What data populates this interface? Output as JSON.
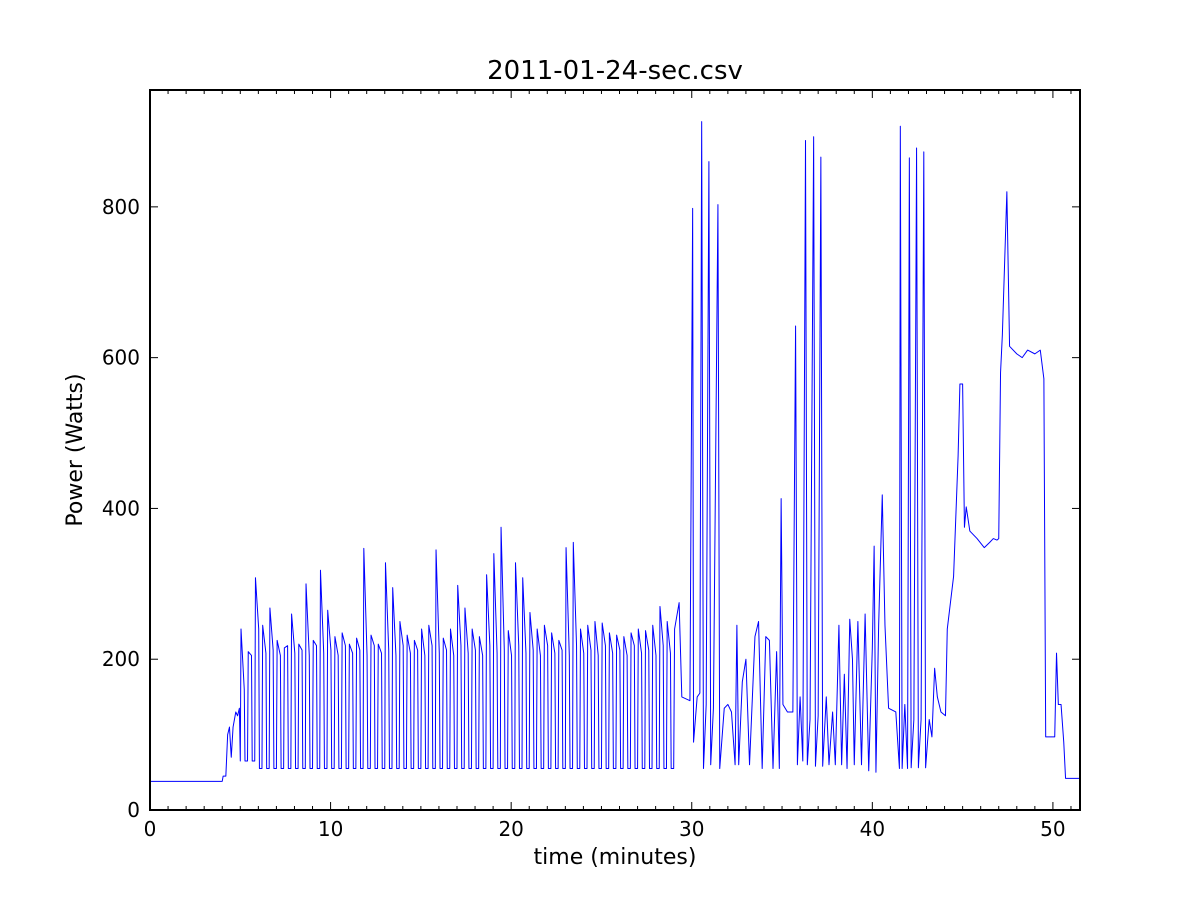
{
  "chart_data": {
    "type": "line",
    "title": "2011-01-24-sec.csv",
    "xlabel": "time (minutes)",
    "ylabel": "Power (Watts)",
    "color": "#0000ff",
    "xlim": [
      0,
      51.5
    ],
    "ylim": [
      0,
      955
    ],
    "xticks": [
      0,
      10,
      20,
      30,
      40,
      50
    ],
    "yticks": [
      0,
      200,
      400,
      600,
      800
    ],
    "xminorticks": [
      1,
      2,
      3,
      4,
      5,
      6,
      7,
      8,
      9,
      11,
      12,
      13,
      14,
      15,
      16,
      17,
      18,
      19,
      21,
      22,
      23,
      24,
      25,
      26,
      27,
      28,
      29,
      31,
      32,
      33,
      34,
      35,
      36,
      37,
      38,
      39,
      41,
      42,
      43,
      44,
      45,
      46,
      47,
      48,
      49,
      51
    ],
    "x": [
      0,
      4,
      4.05,
      4.2,
      4.3,
      4.4,
      4.5,
      4.6,
      4.75,
      4.85,
      4.95,
      5,
      5.04,
      5.22,
      5.26,
      5.4,
      5.44,
      5.62,
      5.66,
      5.8,
      5.84,
      6.02,
      6.06,
      6.2,
      6.24,
      6.42,
      6.46,
      6.6,
      6.64,
      6.82,
      6.86,
      7,
      7.04,
      7.22,
      7.26,
      7.4,
      7.44,
      7.62,
      7.66,
      7.8,
      7.84,
      8.02,
      8.06,
      8.2,
      8.24,
      8.42,
      8.46,
      8.6,
      8.64,
      8.82,
      8.86,
      9,
      9.04,
      9.22,
      9.26,
      9.4,
      9.44,
      9.62,
      9.66,
      9.8,
      9.84,
      10.02,
      10.06,
      10.2,
      10.24,
      10.42,
      10.46,
      10.6,
      10.64,
      10.82,
      10.86,
      11,
      11.04,
      11.22,
      11.26,
      11.4,
      11.44,
      11.62,
      11.66,
      11.8,
      11.84,
      12.02,
      12.06,
      12.2,
      12.24,
      12.42,
      12.46,
      12.6,
      12.64,
      12.82,
      12.86,
      13,
      13.04,
      13.22,
      13.26,
      13.4,
      13.44,
      13.62,
      13.66,
      13.8,
      13.84,
      14.02,
      14.06,
      14.2,
      14.24,
      14.42,
      14.46,
      14.6,
      14.64,
      14.82,
      14.86,
      15,
      15.04,
      15.22,
      15.26,
      15.4,
      15.44,
      15.62,
      15.66,
      15.8,
      15.84,
      16.02,
      16.06,
      16.2,
      16.24,
      16.42,
      16.46,
      16.6,
      16.64,
      16.82,
      16.86,
      17,
      17.04,
      17.22,
      17.26,
      17.4,
      17.44,
      17.62,
      17.66,
      17.8,
      17.84,
      18.02,
      18.06,
      18.2,
      18.24,
      18.42,
      18.46,
      18.6,
      18.64,
      18.82,
      18.86,
      19,
      19.04,
      19.22,
      19.26,
      19.4,
      19.44,
      19.62,
      19.66,
      19.8,
      19.84,
      20.02,
      20.06,
      20.2,
      20.24,
      20.42,
      20.46,
      20.6,
      20.64,
      20.82,
      20.86,
      21,
      21.04,
      21.22,
      21.26,
      21.4,
      21.44,
      21.62,
      21.66,
      21.8,
      21.84,
      22.02,
      22.06,
      22.2,
      22.24,
      22.42,
      22.46,
      22.6,
      22.64,
      22.82,
      22.86,
      23,
      23.04,
      23.22,
      23.26,
      23.4,
      23.44,
      23.62,
      23.66,
      23.8,
      23.84,
      24.02,
      24.06,
      24.2,
      24.24,
      24.42,
      24.46,
      24.6,
      24.64,
      24.82,
      24.86,
      25,
      25.04,
      25.22,
      25.26,
      25.4,
      25.44,
      25.62,
      25.66,
      25.8,
      25.84,
      26.02,
      26.06,
      26.2,
      26.24,
      26.42,
      26.46,
      26.6,
      26.64,
      26.82,
      26.86,
      27,
      27.04,
      27.22,
      27.26,
      27.4,
      27.44,
      27.62,
      27.66,
      27.8,
      27.84,
      28.02,
      28.06,
      28.2,
      28.24,
      28.42,
      28.46,
      28.6,
      28.64,
      28.82,
      28.86,
      29,
      29.05,
      29.3,
      29.45,
      29.9,
      30.05,
      30.1,
      30.3,
      30.45,
      30.55,
      30.65,
      30.8,
      30.95,
      31.05,
      31.2,
      31.45,
      31.55,
      31.8,
      32,
      32.2,
      32.4,
      32.5,
      32.6,
      32.8,
      33,
      33.2,
      33.5,
      33.7,
      33.9,
      34.1,
      34.3,
      34.5,
      34.7,
      34.85,
      34.95,
      35.05,
      35.3,
      35.6,
      35.75,
      35.85,
      36,
      36.15,
      36.3,
      36.4,
      36.55,
      36.75,
      36.85,
      37,
      37.15,
      37.25,
      37.45,
      37.6,
      37.8,
      37.95,
      38.15,
      38.3,
      38.45,
      38.6,
      38.75,
      38.9,
      39,
      39.2,
      39.4,
      39.6,
      39.8,
      40,
      40.1,
      40.2,
      40.35,
      40.55,
      40.7,
      40.9,
      41.3,
      41.5,
      41.55,
      41.65,
      41.8,
      41.95,
      42.05,
      42.15,
      42.3,
      42.45,
      42.55,
      42.7,
      42.85,
      42.95,
      43.15,
      43.3,
      43.45,
      43.6,
      43.8,
      44.05,
      44.15,
      44.5,
      44.75,
      44.85,
      45,
      45.1,
      45.2,
      45.4,
      45.8,
      46.2,
      46.5,
      46.7,
      46.9,
      47,
      47.1,
      47.2,
      47.45,
      47.6,
      48,
      48.3,
      48.6,
      49,
      49.3,
      49.5,
      49.6,
      50.1,
      50.2,
      50.3,
      50.45,
      50.6,
      50.7,
      51.5
    ],
    "values": [
      38,
      38,
      45,
      45,
      100,
      110,
      70,
      110,
      130,
      125,
      135,
      65,
      240,
      160,
      65,
      65,
      210,
      205,
      65,
      65,
      308,
      240,
      55,
      55,
      245,
      208,
      55,
      55,
      268,
      212,
      55,
      55,
      225,
      205,
      55,
      55,
      215,
      218,
      55,
      55,
      260,
      208,
      55,
      55,
      220,
      212,
      55,
      55,
      300,
      205,
      55,
      55,
      225,
      218,
      55,
      55,
      318,
      208,
      55,
      55,
      265,
      212,
      55,
      55,
      230,
      205,
      55,
      55,
      235,
      218,
      55,
      55,
      220,
      208,
      55,
      55,
      228,
      212,
      55,
      55,
      347,
      205,
      55,
      55,
      232,
      218,
      55,
      55,
      220,
      208,
      55,
      55,
      328,
      212,
      55,
      55,
      295,
      205,
      55,
      55,
      250,
      218,
      55,
      55,
      232,
      208,
      55,
      55,
      225,
      212,
      55,
      55,
      240,
      205,
      55,
      55,
      245,
      218,
      55,
      55,
      345,
      208,
      55,
      55,
      228,
      212,
      55,
      55,
      240,
      205,
      55,
      55,
      298,
      218,
      55,
      55,
      268,
      208,
      55,
      55,
      240,
      212,
      55,
      55,
      230,
      205,
      55,
      55,
      312,
      218,
      55,
      55,
      340,
      208,
      55,
      55,
      375,
      212,
      55,
      55,
      238,
      205,
      55,
      55,
      328,
      218,
      55,
      55,
      308,
      208,
      55,
      55,
      262,
      212,
      55,
      55,
      240,
      205,
      55,
      55,
      245,
      218,
      55,
      55,
      235,
      208,
      55,
      55,
      225,
      212,
      55,
      55,
      348,
      205,
      55,
      55,
      355,
      218,
      55,
      55,
      240,
      208,
      55,
      55,
      245,
      212,
      55,
      55,
      250,
      205,
      55,
      55,
      248,
      218,
      55,
      55,
      235,
      208,
      55,
      55,
      232,
      212,
      55,
      55,
      230,
      205,
      55,
      55,
      235,
      218,
      55,
      55,
      240,
      208,
      55,
      55,
      238,
      212,
      55,
      55,
      245,
      205,
      55,
      55,
      270,
      218,
      55,
      55,
      250,
      208,
      55,
      55,
      240,
      275,
      150,
      145,
      798,
      90,
      150,
      155,
      913,
      55,
      140,
      860,
      60,
      135,
      803,
      55,
      135,
      140,
      130,
      60,
      245,
      60,
      170,
      200,
      60,
      230,
      250,
      55,
      230,
      225,
      55,
      210,
      55,
      413,
      140,
      130,
      130,
      642,
      60,
      150,
      65,
      888,
      60,
      120,
      893,
      58,
      125,
      866,
      58,
      150,
      60,
      130,
      60,
      245,
      60,
      180,
      55,
      253,
      200,
      60,
      250,
      60,
      260,
      52,
      215,
      350,
      50,
      245,
      418,
      245,
      135,
      130,
      55,
      907,
      55,
      140,
      55,
      865,
      56,
      120,
      878,
      56,
      120,
      873,
      56,
      120,
      97,
      188,
      150,
      130,
      125,
      240,
      310,
      470,
      565,
      565,
      375,
      402,
      370,
      360,
      348,
      355,
      360,
      358,
      360,
      580,
      630,
      820,
      615,
      605,
      600,
      610,
      605,
      610,
      572,
      97,
      97,
      208,
      140,
      140,
      90,
      42,
      42
    ]
  }
}
